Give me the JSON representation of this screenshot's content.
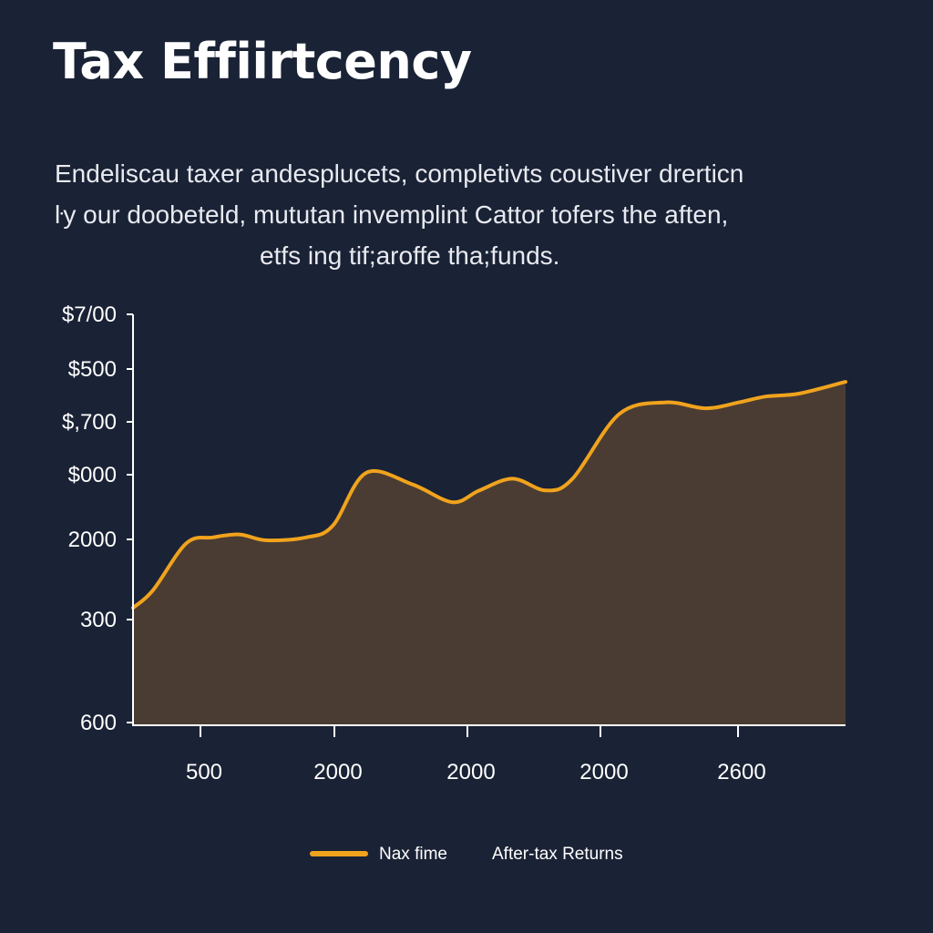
{
  "page": {
    "title": "Tax Effiirtcency",
    "subtitle_lines": [
      "Endeliscau taxer andesplucets, completivts coustiver drerticn",
      "ŀy our doobeteld, mututan invemplint Cattor tofers the aften,",
      "etfs ing tif;aroffe tha;funds."
    ]
  },
  "colors": {
    "background": "#1a2235",
    "line": "#f0a31d",
    "area": "#4a3c33",
    "axis": "#ffffff",
    "text": "#ffffff"
  },
  "chart_data": {
    "type": "area",
    "title": "Tax Effiirtcency",
    "xlabel": "",
    "ylabel": "",
    "y_tick_labels": [
      "$7/00",
      "$500",
      "$,700",
      "$000",
      "2000",
      "300",
      "600"
    ],
    "x_tick_labels": [
      "500",
      "2000",
      "2000",
      "2000",
      "2600"
    ],
    "x_range": [
      0,
      10.7
    ],
    "y_range": [
      0,
      7
    ],
    "legend_position": "bottom-center",
    "legend": [
      {
        "name": "Nax fime",
        "marker": "line"
      },
      {
        "name": "After-tax Returns",
        "marker": "none"
      }
    ],
    "grid": false,
    "series": [
      {
        "name": "After-tax Returns",
        "x": [
          0,
          0.3,
          0.8,
          1.2,
          1.6,
          2.0,
          2.6,
          3.0,
          3.5,
          4.2,
          4.8,
          5.2,
          5.7,
          6.2,
          6.6,
          7.3,
          8.0,
          8.6,
          9.1,
          9.5,
          10.0,
          10.7
        ],
        "y": [
          2.0,
          2.3,
          3.1,
          3.2,
          3.25,
          3.15,
          3.2,
          3.4,
          4.3,
          4.1,
          3.8,
          4.0,
          4.2,
          4.0,
          4.2,
          5.3,
          5.5,
          5.4,
          5.5,
          5.6,
          5.65,
          5.85
        ]
      }
    ]
  }
}
